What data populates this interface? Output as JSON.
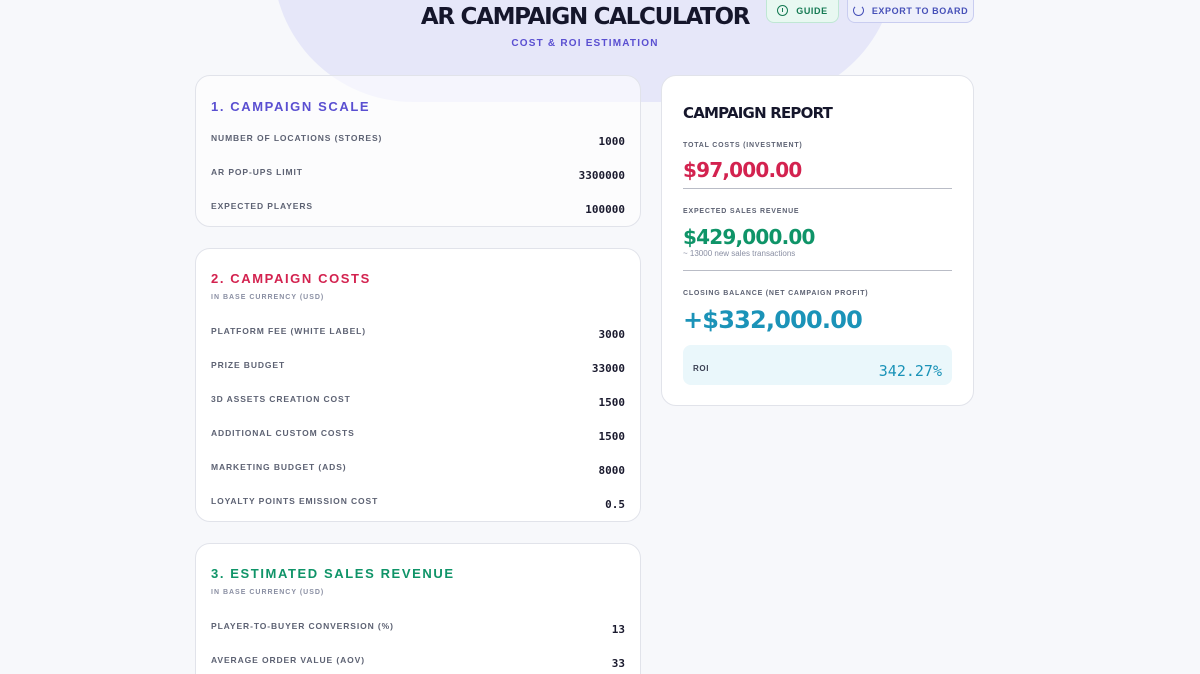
{
  "header": {
    "title": "AR CAMPAIGN CALCULATOR",
    "subtitle": "COST & ROI ESTIMATION",
    "guide_label": "GUIDE",
    "export_label": "EXPORT TO BOARD"
  },
  "scale": {
    "title": "1. CAMPAIGN SCALE",
    "rows": [
      {
        "label": "NUMBER OF LOCATIONS (STORES)",
        "value": "1000"
      },
      {
        "label": "AR POP-UPS LIMIT",
        "value": "3300000"
      },
      {
        "label": "EXPECTED PLAYERS",
        "value": "100000"
      }
    ]
  },
  "costs": {
    "title": "2. CAMPAIGN COSTS",
    "subtitle": "IN BASE CURRENCY (USD)",
    "rows": [
      {
        "label": "PLATFORM FEE (WHITE LABEL)",
        "value": "3000"
      },
      {
        "label": "PRIZE BUDGET",
        "value": "33000"
      },
      {
        "label": "3D ASSETS CREATION COST",
        "value": "1500"
      },
      {
        "label": "ADDITIONAL CUSTOM COSTS",
        "value": "1500"
      },
      {
        "label": "MARKETING BUDGET (ADS)",
        "value": "8000"
      },
      {
        "label": "LOYALTY POINTS EMISSION COST",
        "value": "0.5"
      }
    ]
  },
  "revenue": {
    "title": "3. ESTIMATED SALES REVENUE",
    "subtitle": "IN BASE CURRENCY (USD)",
    "rows": [
      {
        "label": "PLAYER-TO-BUYER CONVERSION (%)",
        "value": "13"
      },
      {
        "label": "AVERAGE ORDER VALUE (AOV)",
        "value": "33"
      }
    ]
  },
  "report": {
    "title": "CAMPAIGN REPORT",
    "total_costs_label": "TOTAL COSTS (INVESTMENT)",
    "total_costs_value": "$97,000.00",
    "revenue_label": "EXPECTED SALES REVENUE",
    "revenue_value": "$429,000.00",
    "revenue_note": "~ 13000 new sales transactions",
    "balance_label": "CLOSING BALANCE (NET CAMPAIGN PROFIT)",
    "balance_value": "+$332,000.00",
    "roi_label": "ROI",
    "roi_value": "342.27%"
  },
  "colors": {
    "accent_purple": "#5a4fd1",
    "cost_red": "#d3224f",
    "revenue_green": "#0f9468",
    "profit_blue": "#1b93b8"
  }
}
